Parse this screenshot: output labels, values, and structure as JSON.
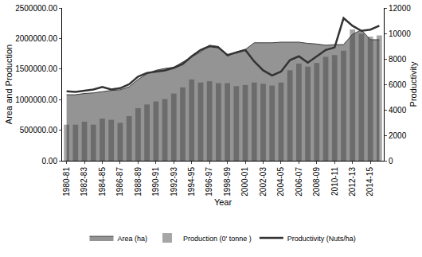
{
  "chart_data": {
    "type": "combo",
    "x_label": "Year",
    "y_label": "Area and Production",
    "y2_label": "Productivity",
    "categories": [
      "1980-81",
      null,
      "1982-83",
      null,
      "1984-85",
      null,
      "1986-87",
      null,
      "1988-89",
      null,
      "1990-91",
      null,
      "1992-93",
      null,
      "1994-95",
      null,
      "1996-97",
      null,
      "1998-99",
      null,
      "2000-01",
      null,
      "2002-03",
      null,
      "2004-05",
      null,
      "2006-07",
      null,
      "2008-09",
      null,
      "2010-11",
      null,
      "2012-13",
      null,
      "2014-15",
      null
    ],
    "series": [
      {
        "name": "Area (ha)",
        "type": "area",
        "color": "#3c3c3c",
        "values": [
          1080000,
          1080000,
          1100000,
          1110000,
          1130000,
          1150000,
          1160000,
          1210000,
          1330000,
          1420000,
          1480000,
          1510000,
          1530000,
          1620000,
          1700000,
          1780000,
          1890000,
          1870000,
          1710000,
          1780000,
          1820000,
          1930000,
          1930000,
          1930000,
          1940000,
          1940000,
          1940000,
          1920000,
          1910000,
          1890000,
          1900000,
          1900000,
          2070000,
          2140000,
          1980000,
          1980000
        ]
      },
      {
        "name": "Production (0' tonne )",
        "type": "bar",
        "color": "#a6a6a6",
        "values": [
          590000,
          590000,
          640000,
          590000,
          690000,
          670000,
          620000,
          730000,
          860000,
          920000,
          970000,
          1010000,
          1100000,
          1200000,
          1330000,
          1280000,
          1300000,
          1270000,
          1270000,
          1220000,
          1240000,
          1280000,
          1260000,
          1230000,
          1280000,
          1480000,
          1590000,
          1540000,
          1600000,
          1700000,
          1730000,
          1800000,
          2150000,
          2080000,
          2030000,
          2050000
        ]
      },
      {
        "name": "Productivity (Nuts/ha)",
        "type": "line",
        "color": "#333333",
        "axis": "y2",
        "values": [
          5450,
          5400,
          5500,
          5600,
          5800,
          5600,
          5700,
          6000,
          6600,
          6900,
          7000,
          7100,
          7300,
          7600,
          8200,
          8700,
          9000,
          8900,
          8300,
          8500,
          8700,
          7800,
          7100,
          6700,
          7000,
          7900,
          8200,
          7700,
          8200,
          8700,
          8900,
          11200,
          10600,
          10200,
          10300,
          10600
        ]
      }
    ],
    "ylim": [
      0,
      2500000
    ],
    "yticks": [
      {
        "value": 0,
        "label": "0.00"
      },
      {
        "value": 500000,
        "label": "500000.00"
      },
      {
        "value": 1000000,
        "label": "1000000.00"
      },
      {
        "value": 1500000,
        "label": "1500000.00"
      },
      {
        "value": 2000000,
        "label": "2000000.00"
      },
      {
        "value": 2500000,
        "label": "2500000.00"
      }
    ],
    "y2lim": [
      0,
      12000
    ],
    "y2ticks": [
      0,
      2000,
      4000,
      6000,
      8000,
      10000,
      12000
    ],
    "legend": "bottom",
    "grid": false
  }
}
